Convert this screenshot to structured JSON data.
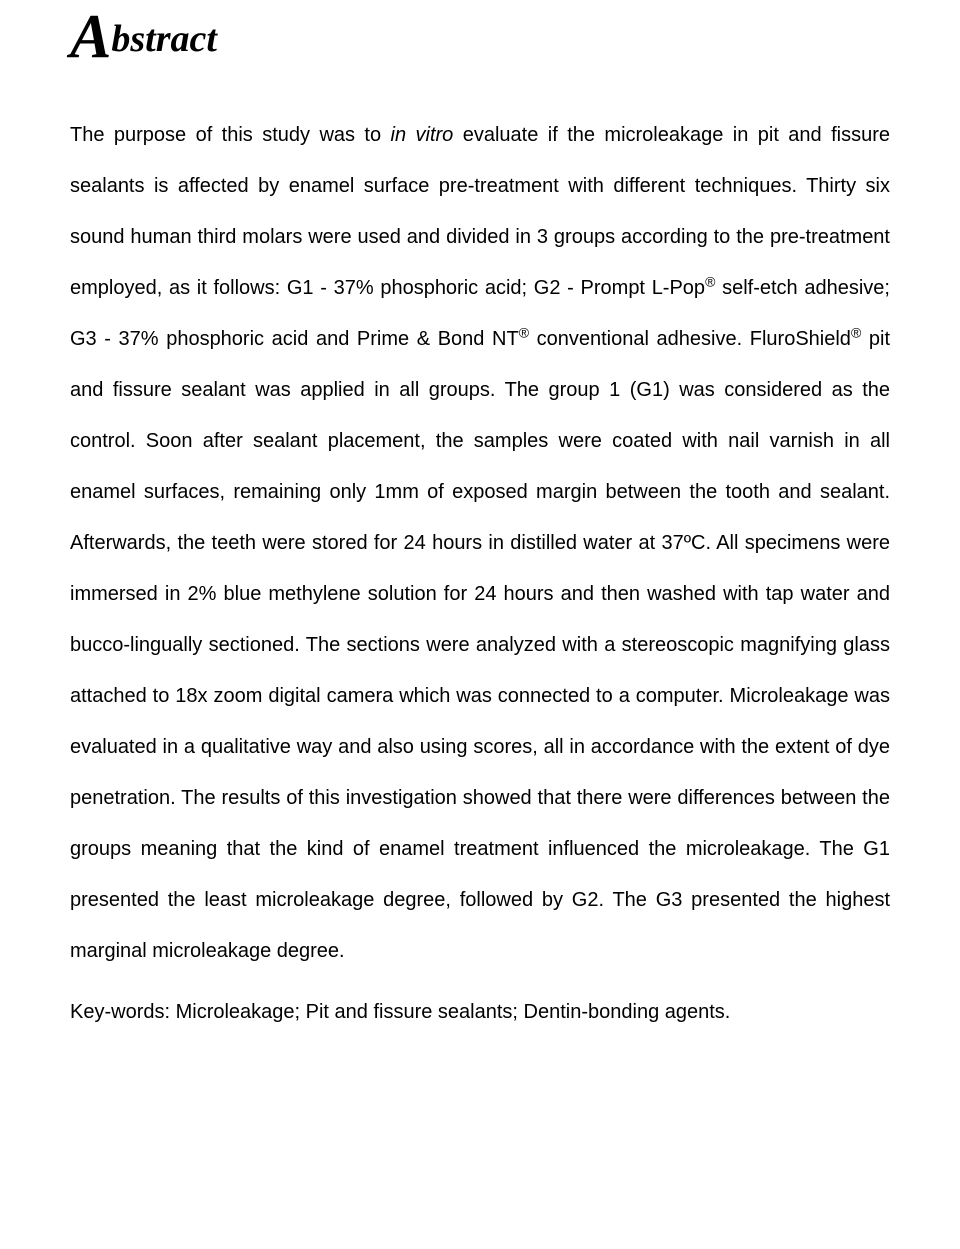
{
  "heading": {
    "first_letter": "A",
    "rest": "bstract",
    "font_family": "Georgia, serif",
    "font_style": "italic",
    "first_letter_fontsize": 62,
    "rest_fontsize": 38,
    "color": "#000000"
  },
  "abstract": {
    "font_family": "Arial, Helvetica, sans-serif",
    "fontsize": 20,
    "line_height": 2.55,
    "text_align": "justify",
    "color": "#000000",
    "segments": [
      {
        "t": "The purpose of this study was to "
      },
      {
        "t": "in vitro",
        "italic": true
      },
      {
        "t": " evaluate if the microleakage in pit and fissure sealants is affected by enamel surface pre-treatment with different techniques. Thirty six sound human third molars were used and divided in 3 groups according to the pre-treatment employed, as it follows: G1 - 37% phosphoric acid; G2 - Prompt L-Pop"
      },
      {
        "t": "®",
        "sup": true
      },
      {
        "t": " self-etch adhesive; G3 - 37% phosphoric acid and Prime & Bond NT"
      },
      {
        "t": "®",
        "sup": true
      },
      {
        "t": " conventional adhesive. FluroShield"
      },
      {
        "t": "®",
        "sup": true
      },
      {
        "t": " pit and fissure sealant was applied in all groups. The group 1 (G1) was considered as the control. Soon after sealant placement, the samples were coated with nail varnish in all enamel surfaces, remaining only 1mm of exposed margin between the tooth and sealant. Afterwards, the teeth were stored for 24 hours in distilled water at 37ºC. All specimens were immersed in 2% blue methylene solution for 24 hours and then washed with tap water and bucco-lingually sectioned. The sections were analyzed with a stereoscopic magnifying glass attached to 18x zoom digital camera which was connected to a computer. Microleakage was evaluated in a qualitative way and also using scores, all in accordance with the extent of dye penetration. The results of this investigation showed that there were differences between the groups meaning that the kind of enamel treatment influenced the microleakage. The G1 presented the least microleakage degree, followed by G2. The G3 presented the highest marginal microleakage degree."
      }
    ]
  },
  "keywords": {
    "label_text": "Key-words: Microleakage; Pit and fissure sealants; Dentin-bonding agents."
  }
}
